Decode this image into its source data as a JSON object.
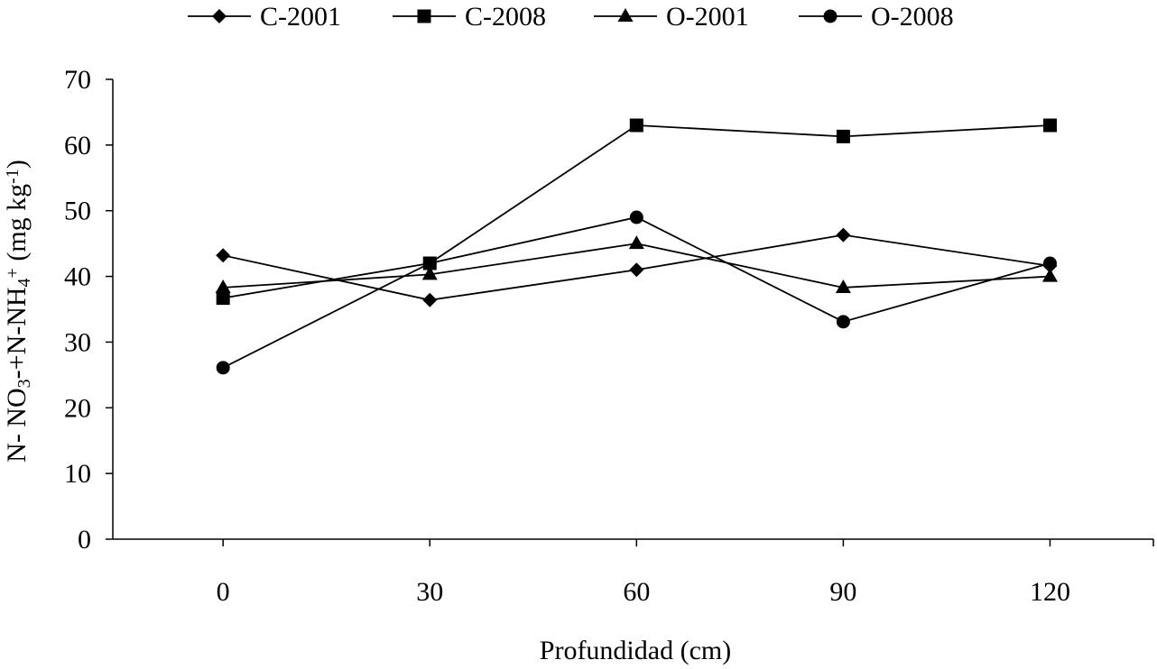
{
  "chart_data": {
    "type": "line",
    "title": "",
    "xlabel": "Profundidad (cm)",
    "ylabel": {
      "parts": [
        {
          "t": "N- NO",
          "s": "n"
        },
        {
          "t": "3",
          "s": "sub"
        },
        {
          "t": "-+N-NH",
          "s": "n"
        },
        {
          "t": "4",
          "s": "sub"
        },
        {
          "t": "+",
          "s": "sup"
        },
        {
          "t": " (mg kg",
          "s": "n"
        },
        {
          "t": "-1",
          "s": "sup"
        },
        {
          "t": ")",
          "s": "n"
        }
      ]
    },
    "x": [
      0,
      30,
      60,
      90,
      120
    ],
    "x_tick_labels": [
      "0",
      "30",
      "60",
      "90",
      "120"
    ],
    "xlim": [
      -16,
      135
    ],
    "ylim": [
      0,
      70
    ],
    "y_ticks": [
      0,
      10,
      20,
      30,
      40,
      50,
      60,
      70
    ],
    "y_tick_labels": [
      "0",
      "10",
      "20",
      "30",
      "40",
      "50",
      "60",
      "70"
    ],
    "grid": false,
    "legend_position": "top",
    "series": [
      {
        "name": "C-2001",
        "marker": "diamond",
        "values": [
          43.2,
          36.4,
          41.0,
          46.3,
          41.6
        ]
      },
      {
        "name": "C-2008",
        "marker": "square",
        "values": [
          36.7,
          42.0,
          63.0,
          61.3,
          63.0
        ]
      },
      {
        "name": "O-2001",
        "marker": "triangle",
        "values": [
          38.3,
          40.3,
          45.0,
          38.3,
          40.0
        ]
      },
      {
        "name": "O-2008",
        "marker": "circle",
        "values": [
          26.1,
          42.0,
          49.0,
          33.1,
          42.0
        ]
      }
    ]
  },
  "colors": {
    "line": "#000000",
    "background": "#ffffff"
  }
}
